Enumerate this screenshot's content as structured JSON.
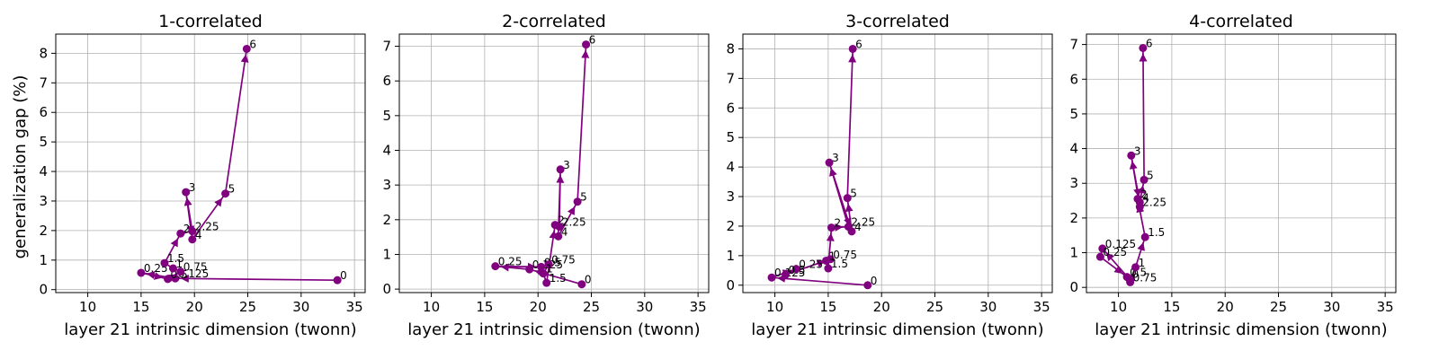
{
  "figure": {
    "ylabel": "generalization gap (%)",
    "xlabel": "layer 21 intrinsic dimension (twonn)",
    "color": "#800080"
  },
  "chart_data": [
    {
      "type": "line",
      "title": "1-correlated",
      "xlabel": "layer 21 intrinsic dimension (twonn)",
      "ylabel": "generalization gap (%)",
      "xlim": [
        7,
        36
      ],
      "ylim": [
        -0.1,
        8.65
      ],
      "xticks": [
        10,
        15,
        20,
        25,
        30,
        35
      ],
      "yticks": [
        0,
        1,
        2,
        3,
        4,
        5,
        6,
        7,
        8
      ],
      "grid": true,
      "points": [
        {
          "label": "0",
          "x": 33.4,
          "y": 0.32
        },
        {
          "label": "0.125",
          "x": 18.2,
          "y": 0.38
        },
        {
          "label": "0.25",
          "x": 15.0,
          "y": 0.57
        },
        {
          "label": "0.5",
          "x": 17.5,
          "y": 0.36
        },
        {
          "label": "0.75",
          "x": 18.7,
          "y": 0.61
        },
        {
          "label": "1",
          "x": 18.0,
          "y": 0.72
        },
        {
          "label": "1.5",
          "x": 17.2,
          "y": 0.9
        },
        {
          "label": "2",
          "x": 18.7,
          "y": 1.9
        },
        {
          "label": "2.25",
          "x": 19.8,
          "y": 1.98
        },
        {
          "label": "3",
          "x": 19.2,
          "y": 3.3
        },
        {
          "label": "4",
          "x": 19.8,
          "y": 1.7
        },
        {
          "label": "5",
          "x": 22.9,
          "y": 3.25
        },
        {
          "label": "6",
          "x": 24.9,
          "y": 8.15
        }
      ]
    },
    {
      "type": "line",
      "title": "2-correlated",
      "xlabel": "layer 21 intrinsic dimension (twonn)",
      "ylabel": "",
      "xlim": [
        7,
        36
      ],
      "ylim": [
        -0.1,
        7.35
      ],
      "xticks": [
        10,
        15,
        20,
        25,
        30,
        35
      ],
      "yticks": [
        0,
        1,
        2,
        3,
        4,
        5,
        6,
        7
      ],
      "grid": true,
      "points": [
        {
          "label": "0",
          "x": 24.1,
          "y": 0.14
        },
        {
          "label": "0.125",
          "x": 19.2,
          "y": 0.57
        },
        {
          "label": "0.25",
          "x": 16.0,
          "y": 0.66
        },
        {
          "label": "0.5",
          "x": 20.3,
          "y": 0.64
        },
        {
          "label": "0.75",
          "x": 21.0,
          "y": 0.71
        },
        {
          "label": "1",
          "x": 20.5,
          "y": 0.45
        },
        {
          "label": "1.5",
          "x": 20.8,
          "y": 0.18
        },
        {
          "label": "2",
          "x": 21.6,
          "y": 1.85
        },
        {
          "label": "2.25",
          "x": 22.0,
          "y": 1.8
        },
        {
          "label": "3",
          "x": 22.1,
          "y": 3.45
        },
        {
          "label": "4",
          "x": 21.9,
          "y": 1.52
        },
        {
          "label": "5",
          "x": 23.7,
          "y": 2.52
        },
        {
          "label": "6",
          "x": 24.5,
          "y": 7.05
        }
      ]
    },
    {
      "type": "line",
      "title": "3-correlated",
      "xlabel": "layer 21 intrinsic dimension (twonn)",
      "ylabel": "",
      "xlim": [
        7,
        36
      ],
      "ylim": [
        -0.25,
        8.5
      ],
      "xticks": [
        10,
        15,
        20,
        25,
        30,
        35
      ],
      "yticks": [
        0,
        1,
        2,
        3,
        4,
        5,
        6,
        7,
        8
      ],
      "grid": true,
      "points": [
        {
          "label": "0",
          "x": 18.7,
          "y": 0.0
        },
        {
          "label": "0.125",
          "x": 9.7,
          "y": 0.26
        },
        {
          "label": "0.25",
          "x": 12.0,
          "y": 0.55
        },
        {
          "label": "0.5",
          "x": 11.0,
          "y": 0.36
        },
        {
          "label": "0.75",
          "x": 15.2,
          "y": 0.88
        },
        {
          "label": "1",
          "x": 14.8,
          "y": 0.83
        },
        {
          "label": "1.5",
          "x": 15.0,
          "y": 0.57
        },
        {
          "label": "2",
          "x": 15.3,
          "y": 1.95
        },
        {
          "label": "2.25",
          "x": 16.9,
          "y": 1.98
        },
        {
          "label": "3",
          "x": 15.1,
          "y": 4.15
        },
        {
          "label": "4",
          "x": 17.2,
          "y": 1.82
        },
        {
          "label": "5",
          "x": 16.8,
          "y": 2.95
        },
        {
          "label": "6",
          "x": 17.3,
          "y": 8.0
        }
      ]
    },
    {
      "type": "line",
      "title": "4-correlated",
      "xlabel": "layer 21 intrinsic dimension (twonn)",
      "ylabel": "",
      "xlim": [
        7,
        36
      ],
      "ylim": [
        -0.15,
        7.3
      ],
      "xticks": [
        10,
        15,
        20,
        25,
        30,
        35
      ],
      "yticks": [
        0,
        1,
        2,
        3,
        4,
        5,
        6,
        7
      ],
      "grid": true,
      "points": [
        {
          "label": "0",
          "x": 11.0,
          "y": 0.25
        },
        {
          "label": "0.125",
          "x": 8.5,
          "y": 1.12
        },
        {
          "label": "0.25",
          "x": 8.3,
          "y": 0.88
        },
        {
          "label": "0.5",
          "x": 10.8,
          "y": 0.3
        },
        {
          "label": "0.75",
          "x": 11.1,
          "y": 0.15
        },
        {
          "label": "1",
          "x": 11.6,
          "y": 0.58
        },
        {
          "label": "1.5",
          "x": 12.5,
          "y": 1.45
        },
        {
          "label": "2",
          "x": 11.8,
          "y": 2.55
        },
        {
          "label": "2.25",
          "x": 12.0,
          "y": 2.32
        },
        {
          "label": "3",
          "x": 11.2,
          "y": 3.8
        },
        {
          "label": "4",
          "x": 12.0,
          "y": 2.45
        },
        {
          "label": "5",
          "x": 12.4,
          "y": 3.1
        },
        {
          "label": "6",
          "x": 12.3,
          "y": 6.9
        }
      ]
    }
  ]
}
